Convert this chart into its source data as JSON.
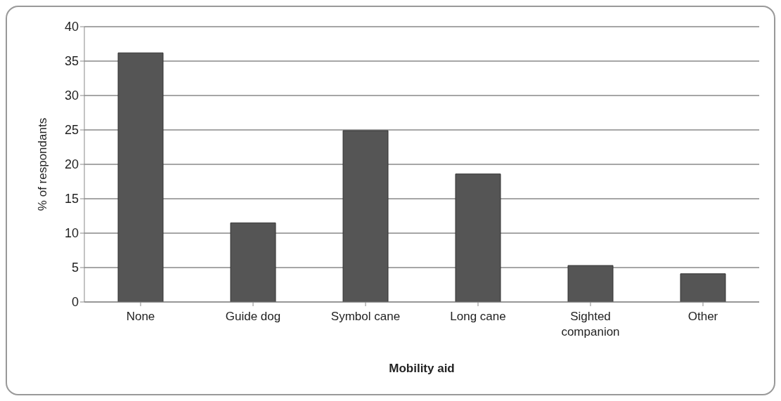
{
  "chart_data": {
    "type": "bar",
    "xlabel": "Mobility aid",
    "ylabel": "% of respondants",
    "categories": [
      "None",
      "Guide dog",
      "Symbol cane",
      "Long cane",
      "Sighted companion",
      "Other"
    ],
    "values": [
      36.2,
      11.5,
      24.9,
      18.6,
      5.3,
      4.1
    ],
    "color": "#555555",
    "ylim": [
      0,
      40
    ],
    "yticks": [
      0,
      5,
      10,
      15,
      20,
      25,
      30,
      35,
      40
    ],
    "grid": "y"
  }
}
